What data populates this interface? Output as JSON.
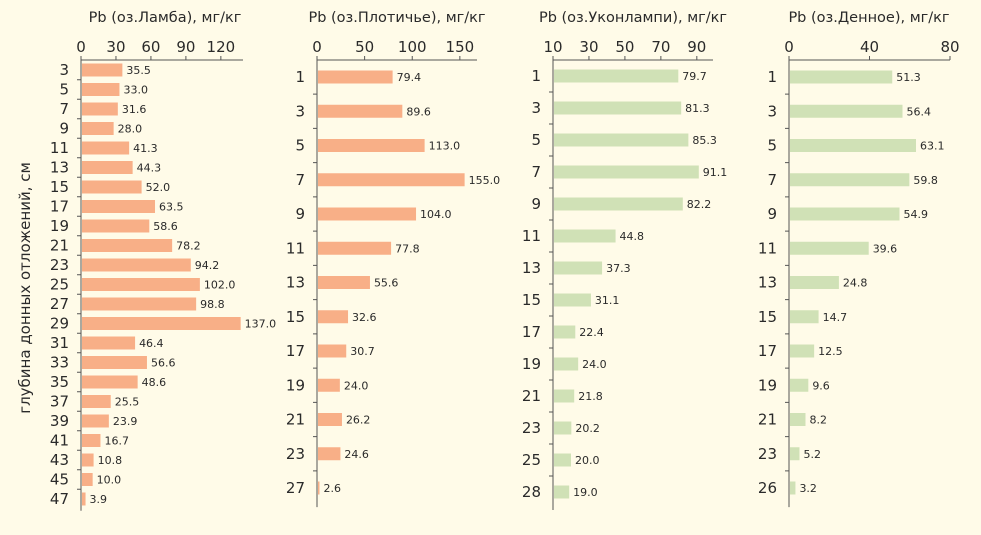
{
  "chart_data": {
    "ylabel": "глубина донных отложений, см",
    "colors": {
      "orange": "#f8af87",
      "green": "#d0e1b6",
      "axis": "#555555",
      "background": "#fffbe8"
    },
    "panels": [
      {
        "type": "bar",
        "orientation": "horizontal",
        "title": "Pb (оз.Ламба), мг/кг",
        "color": "orange",
        "xlim": [
          0,
          139
        ],
        "xticks": [
          0,
          30,
          60,
          90,
          120
        ],
        "categories": [
          "3",
          "5",
          "7",
          "9",
          "11",
          "13",
          "15",
          "17",
          "19",
          "21",
          "23",
          "25",
          "27",
          "29",
          "31",
          "33",
          "35",
          "37",
          "39",
          "41",
          "43",
          "45",
          "47"
        ],
        "values": [
          35.5,
          33.0,
          31.6,
          28.0,
          41.3,
          44.3,
          52.0,
          63.5,
          58.6,
          78.2,
          94.2,
          102.0,
          98.8,
          137.0,
          46.4,
          56.6,
          48.6,
          25.5,
          23.9,
          16.7,
          10.8,
          10.0,
          3.9
        ],
        "labels": [
          "35.5",
          "33.0",
          "31.6",
          "28.0",
          "41.3",
          "44.3",
          "52.0",
          "63.5",
          "58.6",
          "78.2",
          "94.2",
          "102.0",
          "98.8",
          "137.0",
          "46.4",
          "56.6",
          "48.6",
          "25.5",
          "23.9",
          "16.7",
          "10.8",
          "10.0",
          "3.9"
        ]
      },
      {
        "type": "bar",
        "orientation": "horizontal",
        "title": "Pb (оз.Плотичье), мг/кг",
        "color": "orange",
        "xlim": [
          0,
          168
        ],
        "xticks": [
          0,
          50,
          100,
          150
        ],
        "categories": [
          "1",
          "3",
          "5",
          "7",
          "9",
          "11",
          "13",
          "15",
          "17",
          "19",
          "21",
          "23",
          "27"
        ],
        "values": [
          79.4,
          89.6,
          113.0,
          155.0,
          104.0,
          77.8,
          55.6,
          32.6,
          30.7,
          24.0,
          26.2,
          24.6,
          2.6
        ],
        "labels": [
          "79.4",
          "89.6",
          "113.0",
          "155.0",
          "104.0",
          "77.8",
          "55.6",
          "32.6",
          "30.7",
          "24.0",
          "26.2",
          "24.6",
          "2.6"
        ]
      },
      {
        "type": "bar",
        "orientation": "horizontal",
        "title": "Pb (оз.Уконлампи), мг/кг",
        "color": "green",
        "xlim": [
          10,
          99
        ],
        "xticks": [
          10,
          30,
          50,
          70,
          90
        ],
        "categories": [
          "1",
          "3",
          "5",
          "7",
          "9",
          "11",
          "13",
          "15",
          "17",
          "19",
          "21",
          "23",
          "25",
          "28"
        ],
        "values": [
          79.7,
          81.3,
          85.3,
          91.1,
          82.2,
          44.8,
          37.3,
          31.1,
          22.4,
          24.0,
          21.8,
          20.2,
          20.0,
          19.0
        ],
        "labels": [
          "79.7",
          "81.3",
          "85.3",
          "91.1",
          "82.2",
          "44.8",
          "37.3",
          "31.1",
          "22.4",
          "24.0",
          "21.8",
          "20.2",
          "20.0",
          "19.0"
        ]
      },
      {
        "type": "bar",
        "orientation": "horizontal",
        "title": "Pb (оз.Денное), мг/кг",
        "color": "green",
        "xlim": [
          0,
          80
        ],
        "xticks": [
          0,
          40,
          80
        ],
        "categories": [
          "1",
          "3",
          "5",
          "7",
          "9",
          "11",
          "13",
          "15",
          "17",
          "19",
          "21",
          "23",
          "26"
        ],
        "values": [
          51.3,
          56.4,
          63.1,
          59.8,
          54.9,
          39.6,
          24.8,
          14.7,
          12.5,
          9.6,
          8.2,
          5.2,
          3.2
        ],
        "labels": [
          "51.3",
          "56.4",
          "63.1",
          "59.8",
          "54.9",
          "39.6",
          "24.8",
          "14.7",
          "12.5",
          "9.6",
          "8.2",
          "5.2",
          "3.2"
        ]
      }
    ]
  }
}
